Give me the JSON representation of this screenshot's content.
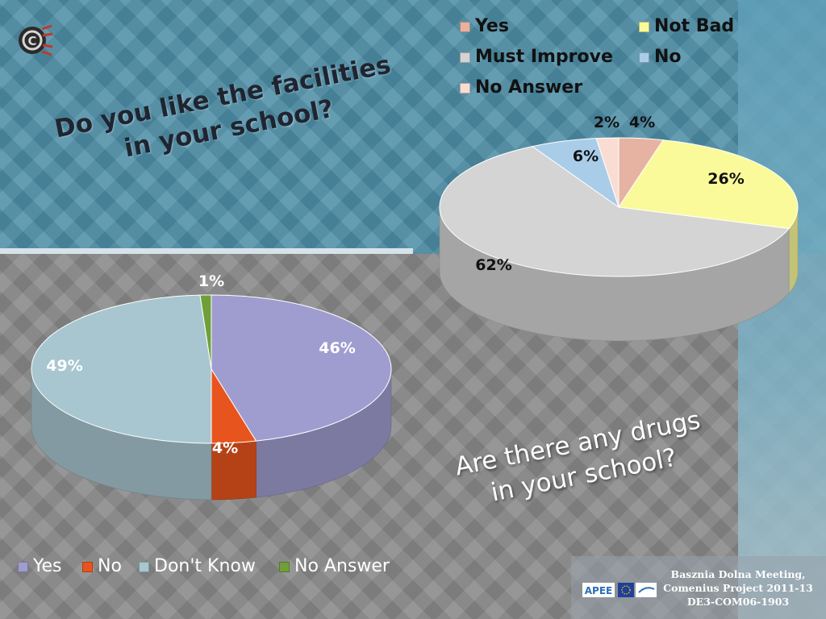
{
  "chart_data": [
    {
      "type": "pie",
      "title": "Do you like the facilities in your school?",
      "categories": [
        "Yes",
        "Not Bad",
        "Must Improve",
        "No",
        "No Answer"
      ],
      "values": [
        4,
        26,
        62,
        6,
        2
      ],
      "labels": [
        "4%",
        "26%",
        "62%",
        "6%",
        "2%"
      ],
      "colors": [
        "#e6b3a2",
        "#fafa9a",
        "#d4d4d4",
        "#a9cde8",
        "#f9ddd3"
      ],
      "legend_position": "top"
    },
    {
      "type": "pie",
      "title": "Are there any drugs in your school?",
      "categories": [
        "Yes",
        "No",
        "Don't Know",
        "No Answer"
      ],
      "values": [
        46,
        4,
        49,
        1
      ],
      "labels": [
        "46%",
        "4%",
        "49%",
        "1%"
      ],
      "colors": [
        "#9f9dcf",
        "#e8541e",
        "#a8c6d0",
        "#6fa038"
      ],
      "legend_position": "bottom"
    }
  ],
  "slide": {
    "question1_line1": "Do you like the facilities",
    "question1_line2": "in your school?",
    "question2_line1": "Are there any drugs",
    "question2_line2": "in your school?",
    "footer_line1": "Basznia Dolna Meeting,",
    "footer_line2": "Comenius Project 2011-13",
    "footer_line3": "DE3-COM06-1903",
    "footer_logo_text": "APEE",
    "logo_icon": "comenius-logo-icon"
  }
}
